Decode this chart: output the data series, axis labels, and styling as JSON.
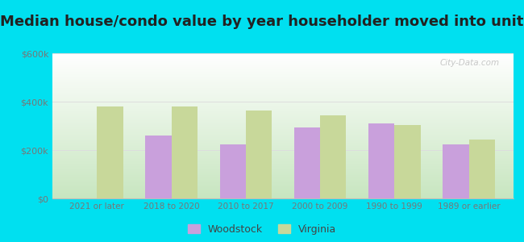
{
  "title": "Median house/condo value by year householder moved into unit",
  "categories": [
    "2021 or later",
    "2018 to 2020",
    "2010 to 2017",
    "2000 to 2009",
    "1990 to 1999",
    "1989 or earlier"
  ],
  "woodstock": [
    0,
    260000,
    225000,
    295000,
    310000,
    225000
  ],
  "virginia": [
    380000,
    380000,
    365000,
    345000,
    305000,
    245000
  ],
  "woodstock_color": "#c9a0dc",
  "virginia_color": "#c8d89a",
  "woodstock_label": "Woodstock",
  "virginia_label": "Virginia",
  "ylim": [
    0,
    600000
  ],
  "yticks": [
    0,
    200000,
    400000,
    600000
  ],
  "ytick_labels": [
    "$0",
    "$200k",
    "$400k",
    "$600k"
  ],
  "bg_outer": "#00e0f0",
  "watermark": "City-Data.com",
  "title_fontsize": 13,
  "bar_width": 0.35,
  "grad_bottom_color": "#c8e6c0",
  "grad_top_color": "#ffffff"
}
